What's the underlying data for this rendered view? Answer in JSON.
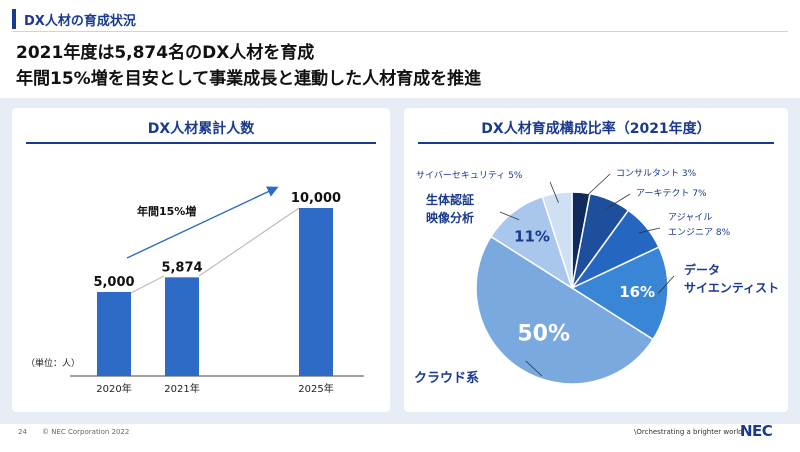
{
  "section": {
    "label": "DX人材の育成状況"
  },
  "headline": {
    "line1": "2021年度は5,874名のDX人材を育成",
    "line2": "年間15%増を目安として事業成長と連動した人材育成を推進"
  },
  "bar_card": {
    "title": "DX人材累計人数",
    "unit": "（単位：人）",
    "growth_label": "年間15%増"
  },
  "pie_card": {
    "title": "DX人材育成構成比率（2021年度）"
  },
  "chart_data": [
    {
      "type": "bar",
      "title": "DX人材累計人数",
      "categories": [
        "2020年",
        "2021年",
        "2025年"
      ],
      "values": [
        5000,
        5874,
        10000
      ],
      "value_labels": [
        "5,000",
        "5,874",
        "10,000"
      ],
      "ylabel": "（単位：人）",
      "ylim": [
        0,
        10000
      ],
      "color": "#2e6bc6",
      "annotation": "年間15%増",
      "grid": false
    },
    {
      "type": "pie",
      "title": "DX人材育成構成比率（2021年度）",
      "slices": [
        {
          "label": "コンサルタント 3%",
          "value": 3,
          "color": "#0f2a5c"
        },
        {
          "label": "アーキテクト 7%",
          "value": 7,
          "color": "#1d4f9c"
        },
        {
          "label": "アジャイル\nエンジニア 8%",
          "value": 8,
          "color": "#2566c2"
        },
        {
          "label": "データ\nサイエンティスト",
          "value": 16,
          "color": "#3a86d6",
          "inner": "16%"
        },
        {
          "label": "クラウド系",
          "value": 50,
          "color": "#7aa9e0",
          "inner": "50%"
        },
        {
          "label": "生体認証\n映像分析",
          "value": 11,
          "color": "#a9c6ec",
          "inner": "11%"
        },
        {
          "label": "サイバーセキュリティ 5%",
          "value": 5,
          "color": "#cfdff4"
        }
      ]
    }
  ],
  "footer": {
    "page": "24",
    "copyright": "© NEC Corporation 2022",
    "slogan": "\\Orchestrating a brighter world",
    "logo": "NEC"
  }
}
